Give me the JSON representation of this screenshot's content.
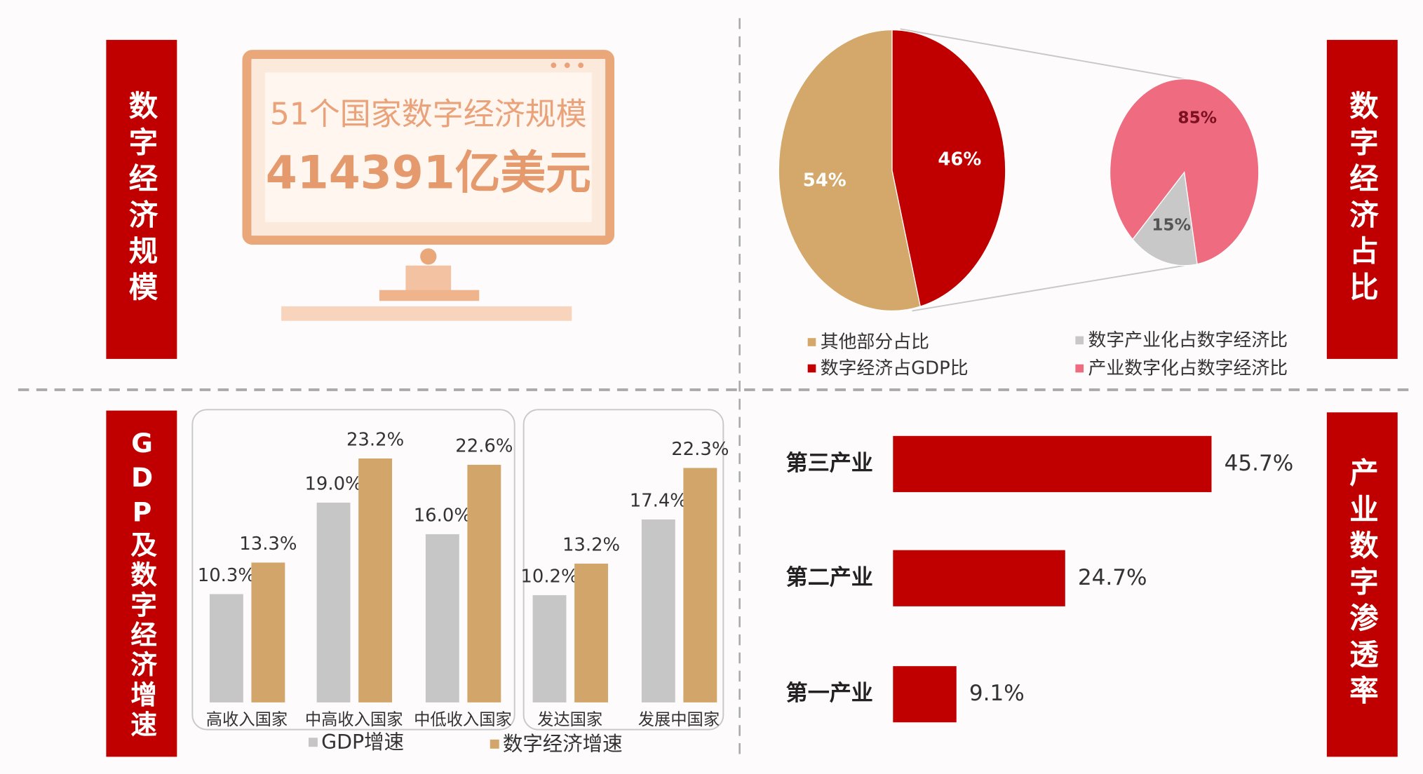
{
  "panels": {
    "scale_title": "数字经济规模",
    "share_title": "数字经济占比",
    "growth_title": "GDP及数字经济增速",
    "industry_title": "产业数字渗透率"
  },
  "monitor": {
    "line1": "51个国家数字经济规模",
    "line2": "414391亿美元"
  },
  "chart_data": [
    {
      "type": "pie",
      "categories": [
        "其他部分占比",
        "数字经济占GDP比"
      ],
      "values": [
        54,
        46
      ],
      "value_labels": [
        "54%",
        "46%"
      ],
      "colors": [
        "#d4a86a",
        "#c00000"
      ]
    },
    {
      "type": "pie",
      "categories": [
        "数字产业化占数字经济比",
        "产业数字化占数字经济比"
      ],
      "values": [
        15,
        85
      ],
      "value_labels": [
        "15%",
        "85%"
      ],
      "colors": [
        "#c8c8c8",
        "#ef6b7f"
      ]
    },
    {
      "type": "bar",
      "categories": [
        "高收入国家",
        "中高收入国家",
        "中低收入国家",
        "发达国家",
        "发展中国家"
      ],
      "series": [
        {
          "name": "GDP增速",
          "color": "#c6c6c6",
          "values": [
            10.3,
            19.0,
            16.0,
            10.2,
            17.4
          ],
          "value_labels": [
            "10.3%",
            "19.0%",
            "16.0%",
            "10.2%",
            "17.4%"
          ]
        },
        {
          "name": "数字经济增速",
          "color": "#d2a56a",
          "values": [
            13.3,
            23.2,
            22.6,
            13.2,
            22.3
          ],
          "value_labels": [
            "13.3%",
            "23.2%",
            "22.6%",
            "13.2%",
            "22.3%"
          ]
        }
      ],
      "ylim": [
        0,
        25
      ]
    },
    {
      "type": "hbar",
      "categories": [
        "第三产业",
        "第二产业",
        "第一产业"
      ],
      "values": [
        45.7,
        24.7,
        9.1
      ],
      "value_labels": [
        "45.7%",
        "24.7%",
        "9.1%"
      ],
      "color": "#c00000",
      "xlim": [
        0,
        50
      ]
    }
  ]
}
